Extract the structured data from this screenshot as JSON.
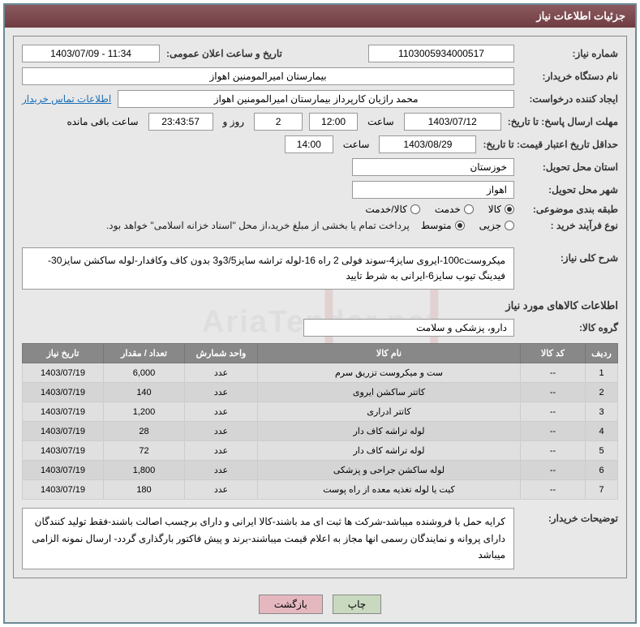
{
  "header": {
    "title": "جزئیات اطلاعات نیاز"
  },
  "fields": {
    "need_number_label": "شماره نیاز:",
    "need_number": "1103005934000517",
    "announce_label": "تاریخ و ساعت اعلان عمومی:",
    "announce_value": "1403/07/09 - 11:34",
    "buyer_org_label": "نام دستگاه خریدار:",
    "buyer_org": "بیمارستان امیرالمومنین اهواز",
    "requester_label": "ایجاد کننده درخواست:",
    "requester": "محمد راژیان کارپرداز بیمارستان امیرالمومنین اهواز",
    "contact_link": "اطلاعات تماس خریدار",
    "deadline_reply_label": "مهلت ارسال پاسخ: تا تاریخ:",
    "deadline_date": "1403/07/12",
    "time_label": "ساعت",
    "deadline_time": "12:00",
    "days_value": "2",
    "days_and": "روز و",
    "countdown": "23:43:57",
    "remaining": "ساعت باقی مانده",
    "validity_label": "حداقل تاریخ اعتبار قیمت: تا تاریخ:",
    "validity_date": "1403/08/29",
    "validity_time": "14:00",
    "province_label": "استان محل تحویل:",
    "province": "خوزستان",
    "city_label": "شهر محل تحویل:",
    "city": "اهواز",
    "category_label": "طبقه بندی موضوعی:",
    "cat_goods": "کالا",
    "cat_service": "خدمت",
    "cat_both": "کالا/خدمت",
    "purchase_type_label": "نوع فرآیند خرید :",
    "pt_partial": "جزیی",
    "pt_medium": "متوسط",
    "purchase_note": "پرداخت تمام یا بخشی از مبلغ خرید،از محل \"اسناد خزانه اسلامی\" خواهد بود.",
    "general_desc_label": "شرح کلی نیاز:",
    "general_desc": "میکروست100c-ایروی سایز4-سوند فولی 2 راه 16-لوله تراشه سایز3/5و3 بدون کاف وکافدار-لوله ساکشن سایز30-فیدینگ تیوب سایز6-ایرانی به شرط تایید",
    "items_section_title": "اطلاعات کالاهای مورد نیاز",
    "goods_group_label": "گروه کالا:",
    "goods_group": "دارو، پزشکی و سلامت",
    "buyer_notes_label": "توضیحات خریدار:",
    "buyer_notes": "کرایه حمل با فروشنده میباشد-شرکت ها ثبت ای مد باشند-کالا ایرانی و دارای برچسب اصالت باشند-فقط تولید کنندگان دارای پروانه و نمایندگان رسمی انها مجاز به اعلام قیمت میباشند-برند و پیش فاکتور بارگذاری گردد- ارسال نمونه الزامی میباشد"
  },
  "table": {
    "headers": {
      "row": "ردیف",
      "code": "کد کالا",
      "name": "نام کالا",
      "unit": "واحد شمارش",
      "qty": "تعداد / مقدار",
      "date": "تاریخ نیاز"
    },
    "rows": [
      {
        "n": "1",
        "code": "--",
        "name": "ست و میکروست تزریق سرم",
        "unit": "عدد",
        "qty": "6,000",
        "date": "1403/07/19"
      },
      {
        "n": "2",
        "code": "--",
        "name": "کاتتر ساکشن ایروی",
        "unit": "عدد",
        "qty": "140",
        "date": "1403/07/19"
      },
      {
        "n": "3",
        "code": "--",
        "name": "کاتتر ادراری",
        "unit": "عدد",
        "qty": "1,200",
        "date": "1403/07/19"
      },
      {
        "n": "4",
        "code": "--",
        "name": "لوله تراشه کاف دار",
        "unit": "عدد",
        "qty": "28",
        "date": "1403/07/19"
      },
      {
        "n": "5",
        "code": "--",
        "name": "لوله تراشه کاف دار",
        "unit": "عدد",
        "qty": "72",
        "date": "1403/07/19"
      },
      {
        "n": "6",
        "code": "--",
        "name": "لوله ساکشن جراحی و پزشکی",
        "unit": "عدد",
        "qty": "1,800",
        "date": "1403/07/19"
      },
      {
        "n": "7",
        "code": "--",
        "name": "کیت یا لوله تغذیه معده از راه پوست",
        "unit": "عدد",
        "qty": "180",
        "date": "1403/07/19"
      }
    ]
  },
  "buttons": {
    "print": "چاپ",
    "back": "بازگشت"
  },
  "watermark": "AriaTender.net"
}
